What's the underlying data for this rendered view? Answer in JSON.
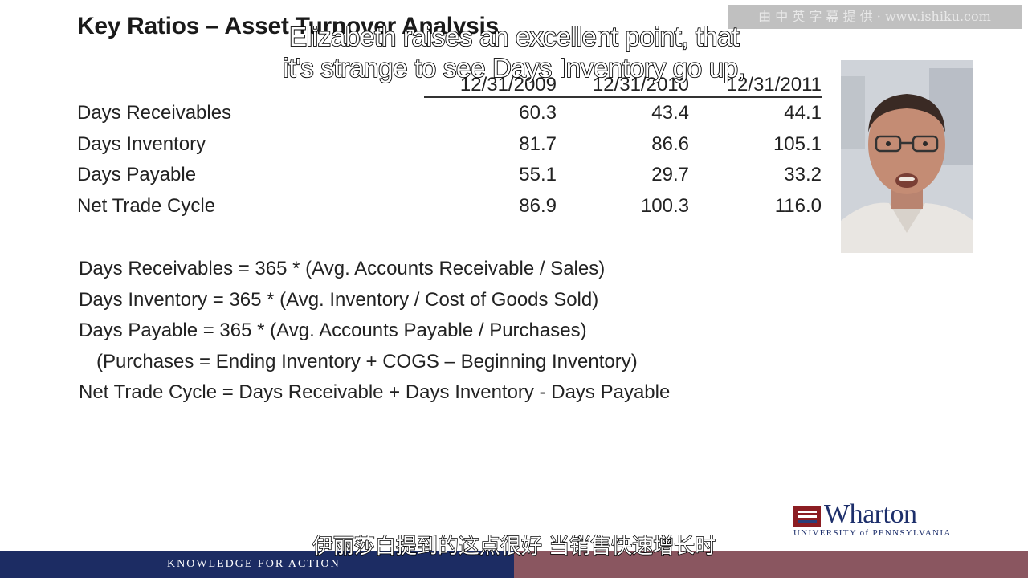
{
  "slide": {
    "title": "Key Ratios – Asset Turnover Analysis",
    "watermark": "由 中 英 字 幕 提 供 · www.ishiku.com",
    "table": {
      "headers": [
        "12/31/2009",
        "12/31/2010",
        "12/31/2011"
      ],
      "rows": [
        {
          "label": "Days Receivables",
          "values": [
            "60.3",
            "43.4",
            "44.1"
          ]
        },
        {
          "label": "Days Inventory",
          "values": [
            "81.7",
            "86.6",
            "105.1"
          ]
        },
        {
          "label": "Days Payable",
          "values": [
            "55.1",
            "29.7",
            "33.2"
          ]
        },
        {
          "label": "Net Trade Cycle",
          "values": [
            "86.9",
            "100.3",
            "116.0"
          ]
        }
      ]
    },
    "formulas": [
      "Days Receivables =  365 * (Avg. Accounts Receivable / Sales)",
      "Days Inventory = 365 * (Avg. Inventory / Cost of Goods Sold)",
      "Days Payable = 365 * (Avg. Accounts Payable / Purchases)",
      "(Purchases = Ending Inventory + COGS – Beginning Inventory)",
      "Net Trade Cycle = Days Receivable + Days Inventory - Days Payable"
    ]
  },
  "logo": {
    "name": "Wharton",
    "subtitle": "UNIVERSITY of PENNSYLVANIA",
    "colors": {
      "navy": "#1d2f6b",
      "crimson": "#8c1d22"
    }
  },
  "footer": {
    "tagline": "KNOWLEDGE FOR ACTION",
    "colors": {
      "left": "#1c2c63",
      "right": "#8a5660"
    }
  },
  "captions": {
    "english_line1": "Elizabeth raises an excellent point, that",
    "english_line2": "it's strange to see Days Inventory go up,",
    "chinese": "伊丽莎白提到的这点很好 当销售快速增长时"
  },
  "presenter": {
    "icon": "presenter-video-icon"
  }
}
